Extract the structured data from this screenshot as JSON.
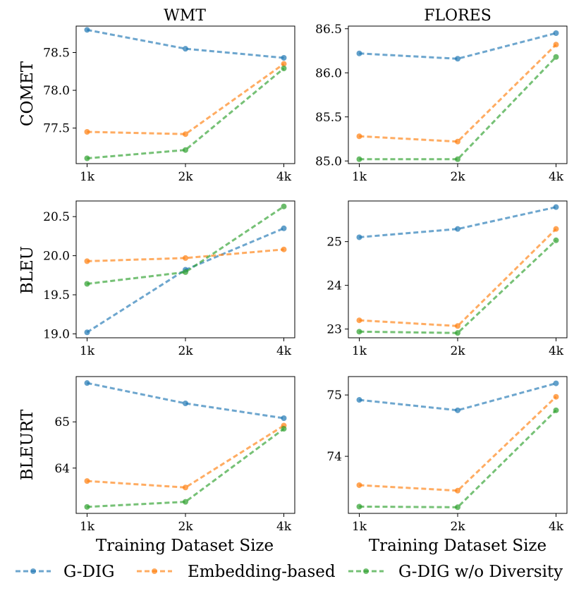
{
  "chart_data": {
    "type": "line",
    "layout": "3x2 grid of line charts",
    "x": [
      "1k",
      "2k",
      "4k"
    ],
    "column_titles": [
      "WMT",
      "FLORES"
    ],
    "row_labels": [
      "COMET",
      "BLEU",
      "BLEURT"
    ],
    "xlabel": "Training Dataset Size",
    "legend": [
      {
        "name": "G-DIG",
        "color": "#1f77b4"
      },
      {
        "name": "Embedding-based",
        "color": "#ff7f0e"
      },
      {
        "name": "G-DIG w/o Diversity",
        "color": "#2ca02c"
      }
    ],
    "colors": {
      "G-DIG": "#1f77b4",
      "Embedding-based": "#ff7f0e",
      "G-DIG w/o Diversity": "#2ca02c"
    },
    "panels": [
      {
        "dataset": "WMT",
        "metric": "COMET",
        "ylim": [
          77.03,
          78.85
        ],
        "yticks": [
          "77.5",
          "78.0",
          "78.5"
        ],
        "ytick_values": [
          77.5,
          78.0,
          78.5
        ],
        "series": [
          {
            "name": "G-DIG",
            "values": [
              78.8,
              78.55,
              78.43
            ]
          },
          {
            "name": "Embedding-based",
            "values": [
              77.45,
              77.42,
              78.35
            ]
          },
          {
            "name": "G-DIG w/o Diversity",
            "values": [
              77.1,
              77.21,
              78.29
            ]
          }
        ]
      },
      {
        "dataset": "FLORES",
        "metric": "COMET",
        "ylim": [
          84.97,
          86.53
        ],
        "yticks": [
          "85.0",
          "85.5",
          "86.0",
          "86.5"
        ],
        "ytick_values": [
          85.0,
          85.5,
          86.0,
          86.5
        ],
        "series": [
          {
            "name": "G-DIG",
            "values": [
              86.22,
              86.16,
              86.45
            ]
          },
          {
            "name": "Embedding-based",
            "values": [
              85.28,
              85.22,
              86.32
            ]
          },
          {
            "name": "G-DIG w/o Diversity",
            "values": [
              85.02,
              85.02,
              86.18
            ]
          }
        ]
      },
      {
        "dataset": "WMT",
        "metric": "BLEU",
        "ylim": [
          18.95,
          20.7
        ],
        "yticks": [
          "19.0",
          "19.5",
          "20.0",
          "20.5"
        ],
        "ytick_values": [
          19.0,
          19.5,
          20.0,
          20.5
        ],
        "series": [
          {
            "name": "G-DIG",
            "values": [
              19.02,
              19.82,
              20.35
            ]
          },
          {
            "name": "Embedding-based",
            "values": [
              19.93,
              19.97,
              20.08
            ]
          },
          {
            "name": "G-DIG w/o Diversity",
            "values": [
              19.64,
              19.79,
              20.63
            ]
          }
        ]
      },
      {
        "dataset": "FLORES",
        "metric": "BLEU",
        "ylim": [
          22.8,
          25.93
        ],
        "yticks": [
          "23",
          "24",
          "25"
        ],
        "ytick_values": [
          23,
          24,
          25
        ],
        "series": [
          {
            "name": "G-DIG",
            "values": [
              25.1,
              25.29,
              25.79
            ]
          },
          {
            "name": "Embedding-based",
            "values": [
              23.2,
              23.07,
              25.29
            ]
          },
          {
            "name": "G-DIG w/o Diversity",
            "values": [
              22.94,
              22.91,
              25.03
            ]
          }
        ]
      },
      {
        "dataset": "WMT",
        "metric": "BLEURT",
        "ylim": [
          63.02,
          65.98
        ],
        "yticks": [
          "64",
          "65"
        ],
        "ytick_values": [
          64,
          65
        ],
        "series": [
          {
            "name": "G-DIG",
            "values": [
              65.84,
              65.4,
              65.08
            ]
          },
          {
            "name": "Embedding-based",
            "values": [
              63.72,
              63.58,
              64.92
            ]
          },
          {
            "name": "G-DIG w/o Diversity",
            "values": [
              63.16,
              63.27,
              64.85
            ]
          }
        ]
      },
      {
        "dataset": "FLORES",
        "metric": "BLEURT",
        "ylim": [
          73.07,
          75.3
        ],
        "yticks": [
          "74",
          "75"
        ],
        "ytick_values": [
          74,
          75
        ],
        "series": [
          {
            "name": "G-DIG",
            "values": [
              74.92,
              74.75,
              75.19
            ]
          },
          {
            "name": "Embedding-based",
            "values": [
              73.53,
              73.44,
              74.97
            ]
          },
          {
            "name": "G-DIG w/o Diversity",
            "values": [
              73.18,
              73.17,
              74.75
            ]
          }
        ]
      }
    ]
  }
}
